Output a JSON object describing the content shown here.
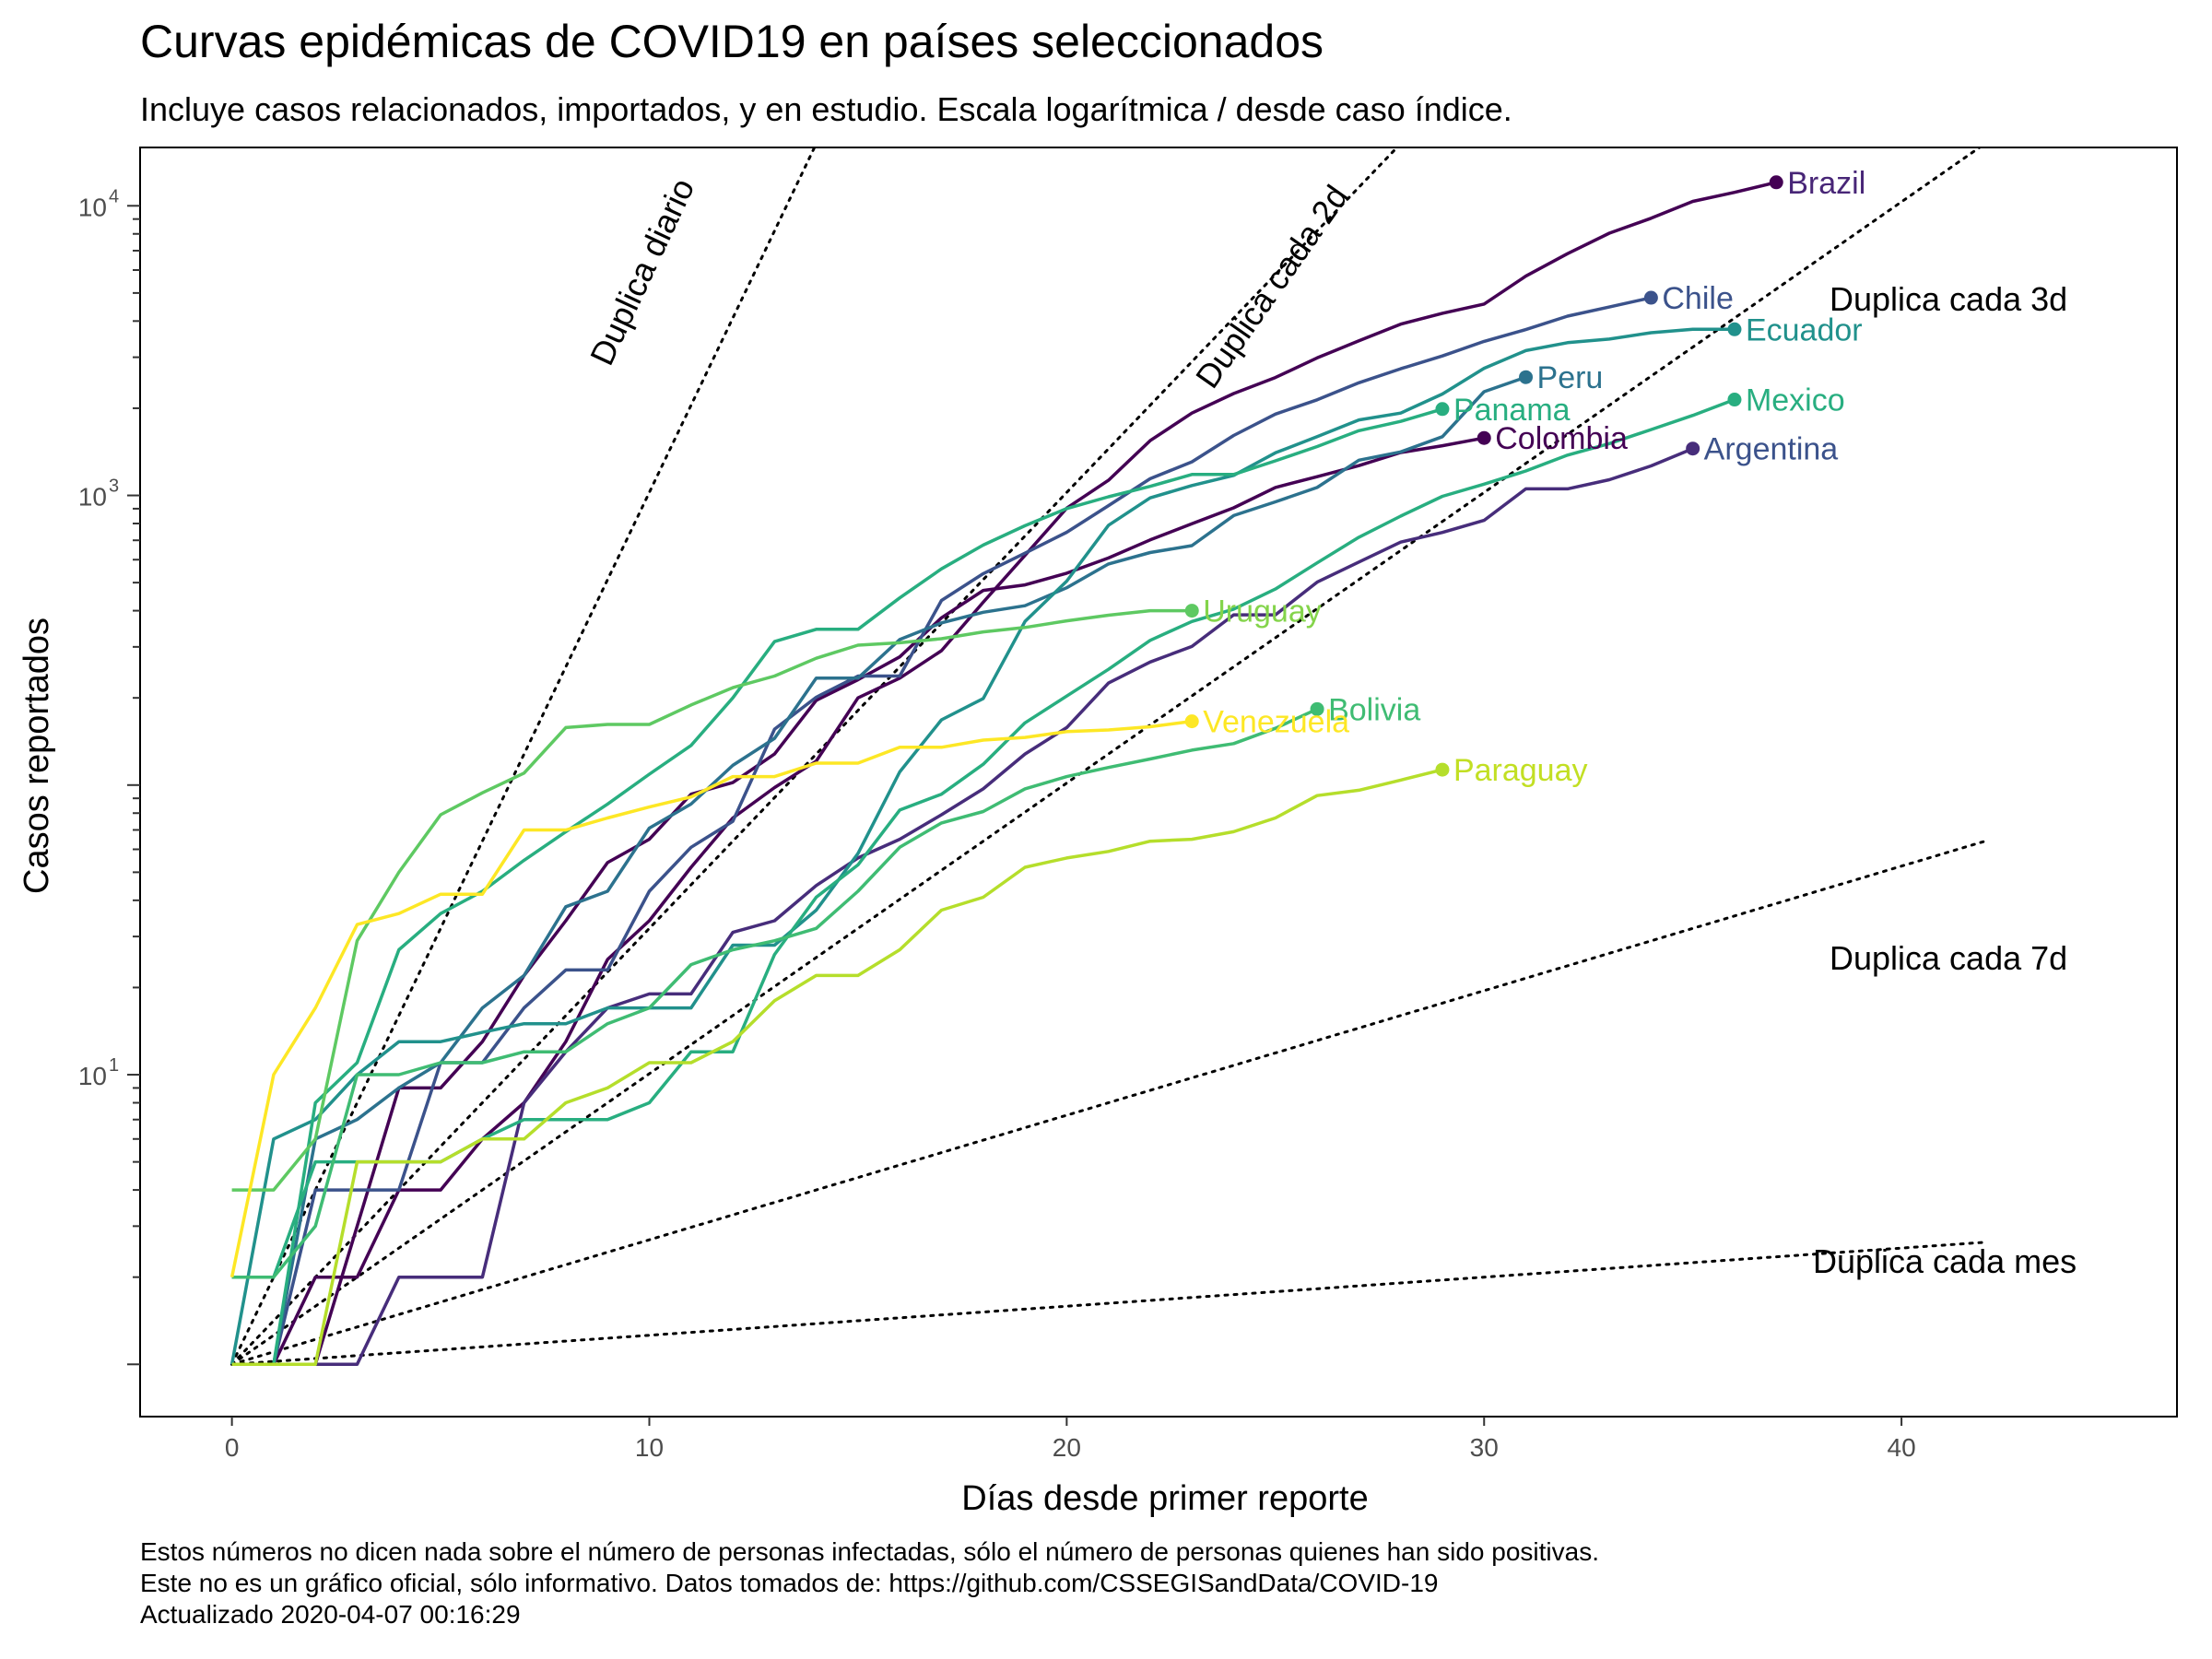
{
  "chart_data": {
    "type": "line",
    "title": "Curvas epidémicas de COVID19 en países seleccionados",
    "subtitle": "Incluye casos relacionados, importados, y en estudio. Escala logarítmica / desde caso índice.",
    "xlabel": "Días desde primer reporte",
    "ylabel": "Casos reportados",
    "xlim": [
      -2.2,
      46.6
    ],
    "ylim": [
      0.66,
      15900
    ],
    "y_scale": "log10",
    "x_ticks": [
      0,
      10,
      20,
      30,
      40
    ],
    "y_ticks": [
      {
        "value": 10,
        "base": "10",
        "exp": "1"
      },
      {
        "value": 1000,
        "base": "10",
        "exp": "3"
      },
      {
        "value": 10000,
        "base": "10",
        "exp": "4"
      }
    ],
    "y_ticks_unlabeled": [
      1,
      100
    ],
    "y_minor_ticks": [
      2,
      3,
      4,
      5,
      6,
      7,
      8,
      9,
      20,
      30,
      40,
      50,
      60,
      70,
      80,
      90,
      200,
      300,
      400,
      500,
      600,
      700,
      800,
      900,
      2000,
      3000,
      4000,
      5000,
      6000,
      7000,
      8000,
      9000
    ],
    "grid": false,
    "legend": "none (direct labels)",
    "caption_lines": [
      "Estos números no dicen nada sobre el número de personas infectadas, sólo el número de personas quienes han sido positivas.",
      "Este no es un gráfico oficial, sólo informativo. Datos tomados de: https://github.com/CSSEGISandData/COVID-19",
      "Actualizado 2020-04-07 00:16:29"
    ],
    "reference_lines": [
      {
        "label": "Duplica diario",
        "doubling_days": 1,
        "x_end": 14
      },
      {
        "label": "Duplica cada 2d",
        "doubling_days": 2,
        "x_end": 28
      },
      {
        "label": "Duplica cada 3d",
        "doubling_days": 3,
        "x_end": 42
      },
      {
        "label": "Duplica cada 7d",
        "doubling_days": 7,
        "x_end": 42
      },
      {
        "label": "Duplica cada mes",
        "doubling_days": 30,
        "x_end": 42
      }
    ],
    "series": [
      {
        "name": "Brazil",
        "color": "#440154",
        "label_color": "#482677",
        "values": [
          1,
          1,
          2,
          2,
          4,
          4,
          6,
          8,
          13,
          25,
          34,
          52,
          77,
          98,
          121,
          200,
          234,
          291,
          428,
          621,
          904,
          1128,
          1546,
          1924,
          2247,
          2554,
          2985,
          3417,
          3904,
          4256,
          4579,
          5717,
          6836,
          8044,
          9056,
          10360,
          11130,
          12056
        ]
      },
      {
        "name": "Colombia",
        "color": "#440154",
        "label_color": "#440154",
        "values": [
          1,
          1,
          1,
          3,
          9,
          9,
          13,
          22,
          34,
          54,
          65,
          93,
          102,
          128,
          196,
          231,
          277,
          378,
          470,
          491,
          539,
          608,
          702,
          798,
          906,
          1065,
          1161,
          1267,
          1406,
          1485,
          1579
        ]
      },
      {
        "name": "Argentina",
        "color": "#472d7b",
        "label_color": "#3b528b",
        "values": [
          1,
          1,
          1,
          1,
          2,
          2,
          2,
          8,
          12,
          17,
          19,
          19,
          31,
          34,
          45,
          56,
          65,
          79,
          97,
          128,
          158,
          225,
          266,
          301,
          387,
          387,
          502,
          589,
          690,
          745,
          820,
          1054,
          1054,
          1133,
          1265,
          1451
        ]
      },
      {
        "name": "Chile",
        "color": "#3b528b",
        "label_color": "#3b528b",
        "values": [
          1,
          1,
          4,
          4,
          4,
          11,
          11,
          17,
          23,
          23,
          43,
          61,
          75,
          156,
          201,
          238,
          238,
          434,
          537,
          632,
          746,
          922,
          1142,
          1306,
          1610,
          1909,
          2139,
          2449,
          2738,
          3031,
          3404,
          3737,
          4161,
          4471,
          4815
        ]
      },
      {
        "name": "Peru",
        "color": "#2c728e",
        "label_color": "#2c728e",
        "values": [
          1,
          1,
          6,
          7,
          9,
          11,
          17,
          22,
          38,
          43,
          71,
          86,
          117,
          145,
          234,
          234,
          318,
          363,
          395,
          416,
          480,
          580,
          635,
          671,
          852,
          950,
          1065,
          1323,
          1414,
          1595,
          2281,
          2561
        ]
      },
      {
        "name": "Ecuador",
        "color": "#21918c",
        "label_color": "#21918c",
        "values": [
          1,
          6,
          7,
          10,
          13,
          13,
          14,
          15,
          15,
          17,
          17,
          17,
          28,
          28,
          37,
          58,
          111,
          168,
          199,
          367,
          506,
          789,
          981,
          1082,
          1173,
          1403,
          1595,
          1823,
          1924,
          2240,
          2748,
          3163,
          3368,
          3465,
          3646,
          3747,
          3747
        ]
      },
      {
        "name": "Panama",
        "color": "#28ae80",
        "label_color": "#28ae80",
        "values": [
          1,
          1,
          8,
          11,
          27,
          36,
          43,
          55,
          69,
          86,
          109,
          137,
          200,
          313,
          345,
          345,
          443,
          558,
          674,
          786,
          901,
          989,
          1075,
          1181,
          1181,
          1317,
          1475,
          1673,
          1801,
          1988
        ]
      },
      {
        "name": "Mexico",
        "color": "#28ae80",
        "label_color": "#28ae80",
        "values": [
          2,
          2,
          5,
          5,
          5,
          5,
          6,
          7,
          7,
          7,
          8,
          12,
          12,
          26,
          41,
          53,
          82,
          93,
          118,
          164,
          203,
          251,
          316,
          367,
          405,
          475,
          585,
          717,
          848,
          993,
          1094,
          1215,
          1378,
          1510,
          1688,
          1890,
          2143
        ]
      },
      {
        "name": "Bolivia",
        "color": "#3fbc73",
        "label_color": "#3fbc73",
        "values": [
          2,
          2,
          3,
          10,
          10,
          11,
          11,
          12,
          12,
          15,
          17,
          24,
          27,
          29,
          32,
          43,
          61,
          74,
          81,
          97,
          107,
          115,
          123,
          132,
          139,
          157,
          183
        ]
      },
      {
        "name": "Uruguay",
        "color": "#5ec962",
        "label_color": "#84d44b",
        "values": [
          4,
          4,
          6,
          29,
          50,
          79,
          94,
          110,
          158,
          162,
          162,
          189,
          217,
          238,
          274,
          304,
          310,
          320,
          338,
          350,
          369,
          386,
          400,
          400
        ]
      },
      {
        "name": "Paraguay",
        "color": "#b5de2b",
        "label_color": "#c2df23",
        "values": [
          1,
          1,
          1,
          5,
          5,
          5,
          6,
          6,
          8,
          9,
          11,
          11,
          13,
          18,
          22,
          22,
          27,
          37,
          41,
          52,
          56,
          59,
          64,
          65,
          69,
          77,
          92,
          96,
          104,
          113
        ]
      },
      {
        "name": "Venezuela",
        "color": "#fde725",
        "label_color": "#fde725",
        "values": [
          2,
          10,
          17,
          33,
          36,
          42,
          42,
          70,
          70,
          77,
          84,
          91,
          107,
          107,
          119,
          119,
          135,
          135,
          143,
          146,
          153,
          155,
          159,
          166
        ]
      }
    ]
  }
}
